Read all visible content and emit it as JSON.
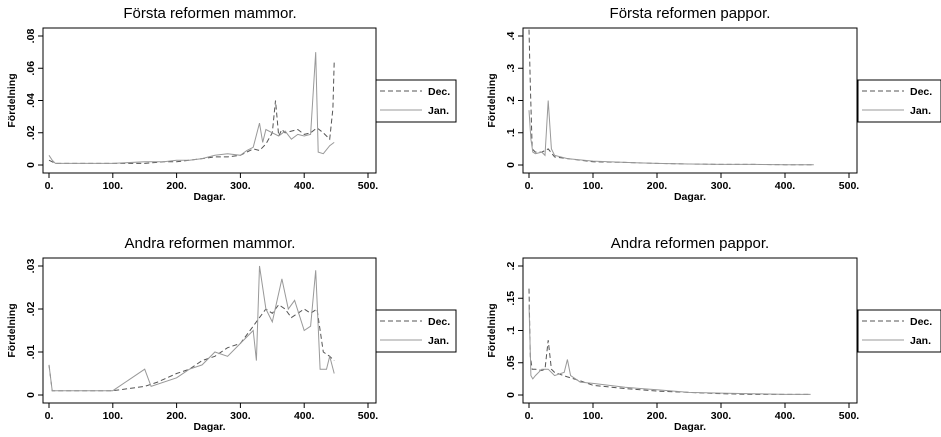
{
  "chart_data": [
    {
      "type": "line",
      "title": "Första reformen mammor.",
      "xlabel": "Dagar.",
      "ylabel": "Fördelning",
      "xlim": [
        0,
        500
      ],
      "ylim": [
        0,
        0.08
      ],
      "xticks": [
        0,
        100,
        200,
        300,
        400,
        500
      ],
      "xtick_labels": [
        "0.",
        "100.",
        "200.",
        "300.",
        "400.",
        "500."
      ],
      "yticks": [
        0,
        0.02,
        0.04,
        0.06,
        0.08
      ],
      "ytick_labels": [
        "0",
        ".02",
        ".04",
        ".06",
        ".08"
      ],
      "legend_position": "right",
      "series": [
        {
          "name": "Dec.",
          "style": "dashed",
          "color": "#555555",
          "x": [
            0,
            5,
            10,
            30,
            60,
            100,
            150,
            180,
            200,
            220,
            240,
            260,
            280,
            300,
            310,
            320,
            330,
            340,
            350,
            355,
            360,
            365,
            370,
            380,
            390,
            400,
            410,
            420,
            430,
            440,
            445,
            447
          ],
          "y": [
            0.003,
            0.002,
            0.001,
            0.001,
            0.001,
            0.001,
            0.001,
            0.002,
            0.002,
            0.003,
            0.004,
            0.005,
            0.005,
            0.006,
            0.008,
            0.01,
            0.009,
            0.013,
            0.02,
            0.04,
            0.018,
            0.022,
            0.02,
            0.021,
            0.022,
            0.019,
            0.02,
            0.023,
            0.02,
            0.016,
            0.035,
            0.064
          ]
        },
        {
          "name": "Jan.",
          "style": "solid",
          "color": "#999999",
          "x": [
            0,
            5,
            10,
            30,
            60,
            100,
            150,
            180,
            200,
            220,
            240,
            260,
            280,
            300,
            310,
            320,
            330,
            335,
            340,
            350,
            360,
            370,
            380,
            390,
            400,
            410,
            418,
            422,
            430,
            440,
            447
          ],
          "y": [
            0.006,
            0.003,
            0.001,
            0.001,
            0.001,
            0.001,
            0.002,
            0.002,
            0.003,
            0.003,
            0.004,
            0.006,
            0.007,
            0.006,
            0.009,
            0.011,
            0.026,
            0.014,
            0.022,
            0.02,
            0.018,
            0.021,
            0.016,
            0.019,
            0.018,
            0.019,
            0.07,
            0.008,
            0.007,
            0.012,
            0.014
          ]
        }
      ]
    },
    {
      "type": "line",
      "title": "Första reformen pappor.",
      "xlabel": "Dagar.",
      "ylabel": "Fördelning",
      "xlim": [
        0,
        500
      ],
      "ylim": [
        0,
        0.4
      ],
      "xticks": [
        0,
        100,
        200,
        300,
        400,
        500
      ],
      "xtick_labels": [
        "0.",
        "100.",
        "200.",
        "300.",
        "400.",
        "500."
      ],
      "yticks": [
        0,
        0.1,
        0.2,
        0.3,
        0.4
      ],
      "ytick_labels": [
        "0",
        ".1",
        ".2",
        ".3",
        ".4"
      ],
      "legend_position": "right",
      "series": [
        {
          "name": "Dec.",
          "style": "dashed",
          "color": "#555555",
          "x": [
            0,
            2,
            5,
            10,
            20,
            30,
            40,
            60,
            100,
            150,
            200,
            250,
            300,
            350,
            400,
            445
          ],
          "y": [
            0.42,
            0.25,
            0.05,
            0.04,
            0.04,
            0.05,
            0.025,
            0.02,
            0.01,
            0.008,
            0.005,
            0.003,
            0.002,
            0.002,
            0.001,
            0.001
          ]
        },
        {
          "name": "Jan.",
          "style": "solid",
          "color": "#999999",
          "x": [
            0,
            3,
            6,
            10,
            20,
            25,
            30,
            35,
            40,
            60,
            100,
            150,
            200,
            250,
            300,
            350,
            400,
            445
          ],
          "y": [
            0.17,
            0.08,
            0.04,
            0.035,
            0.04,
            0.03,
            0.2,
            0.05,
            0.03,
            0.02,
            0.012,
            0.008,
            0.005,
            0.003,
            0.002,
            0.002,
            0.001,
            0.001
          ]
        }
      ]
    },
    {
      "type": "line",
      "title": "Andra reformen mammor.",
      "xlabel": "Dagar.",
      "ylabel": "Fördelning",
      "xlim": [
        0,
        500
      ],
      "ylim": [
        0,
        0.03
      ],
      "xticks": [
        0,
        100,
        200,
        300,
        400,
        500
      ],
      "xtick_labels": [
        "0.",
        "100.",
        "200.",
        "300.",
        "400.",
        "500."
      ],
      "yticks": [
        0,
        0.01,
        0.02,
        0.03
      ],
      "ytick_labels": [
        "0",
        ".01",
        ".02",
        ".03"
      ],
      "legend_position": "right",
      "series": [
        {
          "name": "Dec.",
          "style": "dashed",
          "color": "#555555",
          "x": [
            0,
            5,
            20,
            50,
            100,
            150,
            170,
            200,
            220,
            240,
            260,
            280,
            300,
            320,
            330,
            340,
            350,
            360,
            370,
            380,
            390,
            400,
            410,
            420,
            430,
            440,
            447
          ],
          "y": [
            0.007,
            0.001,
            0.001,
            0.001,
            0.001,
            0.002,
            0.003,
            0.005,
            0.006,
            0.008,
            0.009,
            0.011,
            0.012,
            0.016,
            0.018,
            0.02,
            0.019,
            0.021,
            0.02,
            0.018,
            0.019,
            0.02,
            0.019,
            0.02,
            0.01,
            0.009,
            0.008
          ]
        },
        {
          "name": "Jan.",
          "style": "solid",
          "color": "#999999",
          "x": [
            0,
            5,
            20,
            50,
            100,
            150,
            160,
            200,
            220,
            240,
            260,
            280,
            300,
            320,
            325,
            330,
            340,
            350,
            365,
            375,
            385,
            400,
            410,
            418,
            425,
            435,
            440,
            447
          ],
          "y": [
            0.007,
            0.001,
            0.001,
            0.001,
            0.001,
            0.006,
            0.002,
            0.004,
            0.006,
            0.007,
            0.01,
            0.009,
            0.012,
            0.015,
            0.008,
            0.03,
            0.02,
            0.017,
            0.027,
            0.02,
            0.022,
            0.015,
            0.016,
            0.029,
            0.006,
            0.006,
            0.009,
            0.005
          ]
        }
      ]
    },
    {
      "type": "line",
      "title": "Andra reformen pappor.",
      "xlabel": "Dagar.",
      "ylabel": "Fördelning",
      "xlim": [
        0,
        500
      ],
      "ylim": [
        0,
        0.2
      ],
      "xticks": [
        0,
        100,
        200,
        300,
        400,
        500
      ],
      "xtick_labels": [
        "0.",
        "100.",
        "200.",
        "300.",
        "400.",
        "500."
      ],
      "yticks": [
        0,
        0.05,
        0.1,
        0.15,
        0.2
      ],
      "ytick_labels": [
        "0",
        ".05",
        ".1",
        ".15",
        ".2"
      ],
      "legend_position": "right",
      "series": [
        {
          "name": "Dec.",
          "style": "dashed",
          "color": "#555555",
          "x": [
            0,
            2,
            5,
            10,
            20,
            25,
            30,
            35,
            40,
            60,
            80,
            100,
            150,
            200,
            250,
            300,
            350,
            400,
            440
          ],
          "y": [
            0.165,
            0.06,
            0.04,
            0.04,
            0.038,
            0.04,
            0.085,
            0.04,
            0.035,
            0.028,
            0.022,
            0.015,
            0.01,
            0.006,
            0.004,
            0.002,
            0.001,
            0.001,
            0.001
          ]
        },
        {
          "name": "Jan.",
          "style": "solid",
          "color": "#999999",
          "x": [
            0,
            3,
            6,
            10,
            20,
            30,
            40,
            55,
            60,
            65,
            80,
            100,
            150,
            200,
            250,
            300,
            350,
            400,
            440
          ],
          "y": [
            0.14,
            0.03,
            0.025,
            0.03,
            0.04,
            0.04,
            0.03,
            0.035,
            0.055,
            0.03,
            0.02,
            0.018,
            0.012,
            0.008,
            0.004,
            0.003,
            0.002,
            0.001,
            0.001
          ]
        }
      ]
    }
  ]
}
